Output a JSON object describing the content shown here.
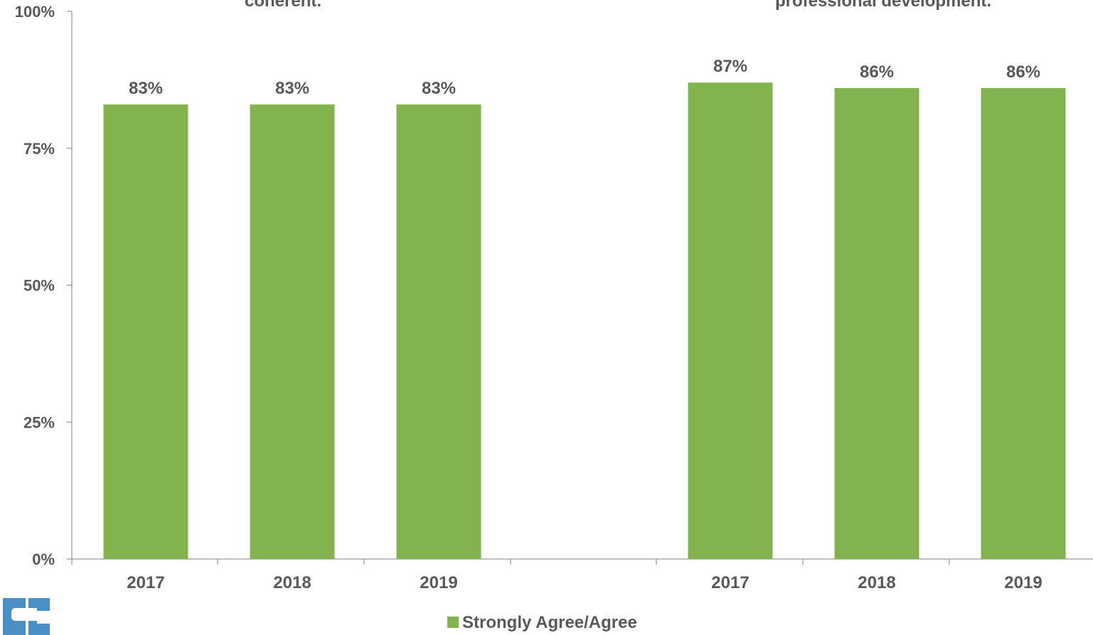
{
  "chart_data": {
    "type": "bar",
    "y_axis": {
      "ylim": [
        0,
        100
      ],
      "ticks": [
        0,
        25,
        50,
        75,
        100
      ],
      "tick_labels": [
        "0%",
        "25%",
        "50%",
        "75%",
        "100%"
      ],
      "grid": false
    },
    "groups": [
      {
        "title_fragment": "coherent.",
        "categories": [
          "2017",
          "2018",
          "2019"
        ],
        "values": [
          83,
          83,
          83
        ],
        "data_labels": [
          "83%",
          "83%",
          "83%"
        ]
      },
      {
        "title_fragment": "professional development.",
        "categories": [
          "2017",
          "2018",
          "2019"
        ],
        "values": [
          87,
          86,
          86
        ],
        "data_labels": [
          "87%",
          "86%",
          "86%"
        ]
      }
    ],
    "series": [
      {
        "name": "Strongly Agree/Agree",
        "color": "#82b34f"
      }
    ],
    "legend": {
      "placement": "bottom-center"
    }
  },
  "logo": {
    "icon": "brand-logo-icon",
    "color": "#4a90c8"
  }
}
